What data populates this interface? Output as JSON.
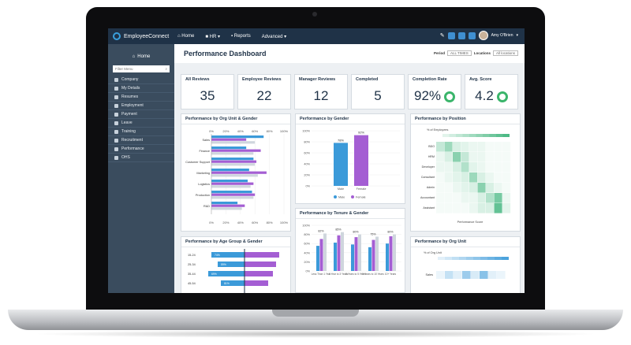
{
  "app": {
    "name": "EmployeeConnect",
    "user": "Amy O'Brien"
  },
  "nav": {
    "home": "Home",
    "hr": "HR",
    "reports": "Reports",
    "advanced": "Advanced"
  },
  "sidebar": {
    "home": "Home",
    "filter_placeholder": "Filter Menu",
    "items": [
      {
        "label": "Company"
      },
      {
        "label": "My Details"
      },
      {
        "label": "Resumes"
      },
      {
        "label": "Employment"
      },
      {
        "label": "Payment"
      },
      {
        "label": "Leave"
      },
      {
        "label": "Training"
      },
      {
        "label": "Recruitment"
      },
      {
        "label": "Performance"
      },
      {
        "label": "OHS"
      }
    ]
  },
  "page": {
    "title": "Performance Dashboard",
    "period_label": "Period",
    "period_value": "ALL TIMES",
    "locations_label": "Locations",
    "locations_value": "All locations"
  },
  "kpis": [
    {
      "label": "All Reviews",
      "value": "35"
    },
    {
      "label": "Employee Reviews",
      "value": "22"
    },
    {
      "label": "Manager Reviews",
      "value": "12"
    },
    {
      "label": "Completed",
      "value": "5"
    },
    {
      "label": "Completion Rate",
      "value": "92%"
    },
    {
      "label": "Avg. Score",
      "value": "4.2"
    }
  ],
  "colors": {
    "male": "#3b9ad9",
    "female": "#a45ed3",
    "overall": "#cfd6dd",
    "ring": "#3bb56b",
    "heat": "#3cb37a"
  },
  "chart_data": [
    {
      "type": "bar",
      "title": "Performance by Org Unit & Gender",
      "categories": [
        "Sales",
        "Finance",
        "Customer Support",
        "Marketing",
        "Logistics",
        "Production",
        "R&D"
      ],
      "series": [
        {
          "name": "Male",
          "values": [
            72,
            48,
            58,
            52,
            50,
            56,
            36
          ]
        },
        {
          "name": "Female",
          "values": [
            48,
            68,
            62,
            76,
            58,
            60,
            46
          ]
        },
        {
          "name": "Overall",
          "values": [
            60,
            58,
            60,
            64,
            54,
            58,
            42
          ]
        }
      ],
      "ticks": [
        "0%",
        "20%",
        "40%",
        "60%",
        "80%",
        "100%"
      ]
    },
    {
      "type": "bar",
      "title": "Performance by Gender",
      "categories": [
        "Male",
        "Female"
      ],
      "values": [
        78,
        92
      ],
      "value_labels": [
        "78%",
        "92%"
      ],
      "ticks": [
        "0%",
        "20%",
        "40%",
        "60%",
        "80%",
        "100%"
      ]
    },
    {
      "type": "bar",
      "title": "Performance by Tenure & Gender",
      "categories": [
        "Less Than 1 Year",
        "1 Year to 3 Years",
        "3 Years to 5 Years",
        "5 Years to 10 Years",
        "10+ Years"
      ],
      "series": [
        {
          "name": "Male",
          "values": [
            55,
            62,
            58,
            52,
            60
          ]
        },
        {
          "name": "Female",
          "values": [
            70,
            78,
            74,
            68,
            76
          ]
        },
        {
          "name": "Overall",
          "values": [
            82,
            85,
            80,
            75,
            80
          ]
        }
      ],
      "value_labels": [
        "82%",
        "85%",
        "80%",
        "75%",
        "80%"
      ],
      "ticks": [
        "0%",
        "20%",
        "40%",
        "60%",
        "80%",
        "100%"
      ]
    },
    {
      "type": "heatmap",
      "title": "Performance by Position",
      "ylabel": "% of Employees",
      "xlabel": "Performance Score",
      "rows": [
        "BDO",
        "HRM",
        "Developer",
        "Consultant",
        "Admin",
        "Accountant",
        "Assistant"
      ]
    },
    {
      "type": "bar",
      "title": "Performance by Age Group & Gender",
      "categories": [
        "15-24",
        "25-34",
        "35-44",
        "45-54"
      ],
      "male_labels": [
        "74%",
        "59%",
        "69%",
        "81%"
      ],
      "female_labels": [
        "",
        "",
        "",
        ""
      ]
    },
    {
      "type": "heatmap",
      "title": "Performance by Org Unit",
      "ylabel": "% of Org Unit",
      "rows": [
        "Sales"
      ]
    }
  ]
}
